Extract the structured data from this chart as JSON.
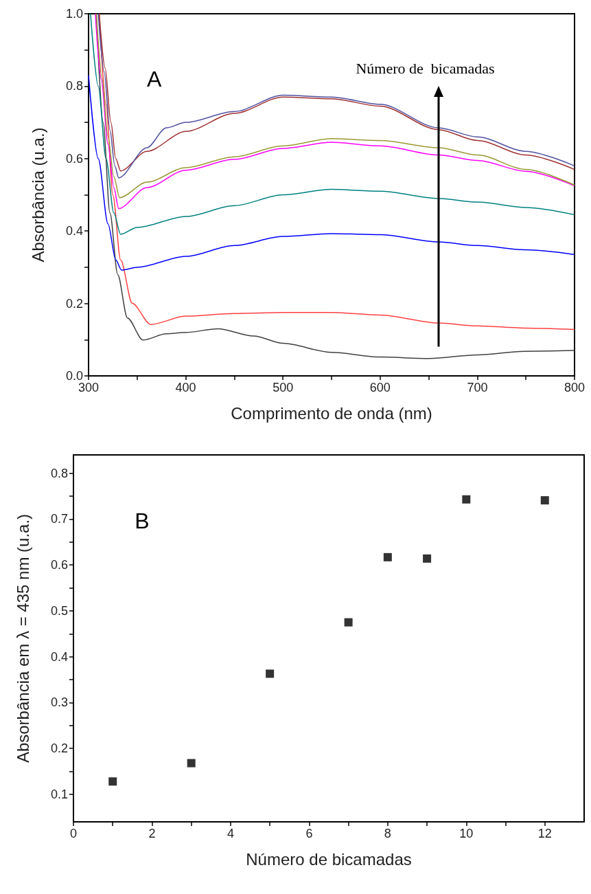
{
  "chart_data": [
    {
      "type": "line",
      "xlabel": "Comprimento de onda (nm)",
      "ylabel": "Absorbância (u.a.)",
      "marker": "none",
      "annotations": [
        "A",
        "Número de  bicamadas"
      ],
      "xlim": [
        300,
        800
      ],
      "xticks": [
        300,
        {
          "value": 350,
          "label": null
        },
        400,
        {
          "value": 450,
          "label": null
        },
        500,
        {
          "value": 550,
          "label": null
        },
        600,
        {
          "value": 650,
          "label": null
        },
        700,
        {
          "value": 750,
          "label": null
        },
        800
      ],
      "ylim": [
        0,
        1
      ],
      "yticks": [
        {
          "value": 0,
          "label": "0.0"
        },
        {
          "value": 0.1,
          "label": null
        },
        0.2,
        {
          "value": 0.3,
          "label": null
        },
        0.4,
        {
          "value": 0.5,
          "label": null
        },
        0.6,
        {
          "value": 0.7,
          "label": null
        },
        0.8,
        {
          "value": 0.9,
          "label": null
        },
        {
          "value": 1,
          "label": "1.0"
        }
      ],
      "series": [
        {
          "color": "#404040",
          "x": [
            308,
            315,
            322,
            330,
            340,
            356,
            380,
            400,
            433,
            470,
            500,
            550,
            600,
            650,
            700,
            750,
            800
          ],
          "values": [
            1.0,
            0.7,
            0.45,
            0.28,
            0.16,
            0.099,
            0.116,
            0.12,
            0.13,
            0.11,
            0.09,
            0.065,
            0.052,
            0.048,
            0.058,
            0.068,
            0.07
          ]
        },
        {
          "color": "#ff4040",
          "x": [
            311,
            318,
            325,
            333,
            345,
            364,
            400,
            450,
            500,
            550,
            600,
            660,
            700,
            750,
            800
          ],
          "values": [
            1.0,
            0.75,
            0.5,
            0.32,
            0.2,
            0.142,
            0.165,
            0.172,
            0.175,
            0.175,
            0.168,
            0.146,
            0.138,
            0.132,
            0.128
          ]
        },
        {
          "color": "#0000ff",
          "x": [
            300,
            310,
            320,
            328,
            334,
            350,
            400,
            450,
            500,
            550,
            600,
            660,
            700,
            750,
            800
          ],
          "values": [
            0.83,
            0.6,
            0.42,
            0.32,
            0.292,
            0.3,
            0.33,
            0.36,
            0.385,
            0.393,
            0.39,
            0.37,
            0.36,
            0.348,
            0.335
          ]
        },
        {
          "color": "#008080",
          "x": [
            302,
            310,
            318,
            326,
            333,
            350,
            400,
            450,
            500,
            550,
            600,
            660,
            700,
            750,
            800
          ],
          "values": [
            1.0,
            0.8,
            0.6,
            0.45,
            0.391,
            0.41,
            0.44,
            0.47,
            0.5,
            0.515,
            0.51,
            0.49,
            0.48,
            0.465,
            0.445
          ]
        },
        {
          "color": "#ff00ff",
          "x": [
            307,
            313,
            320,
            326,
            331,
            360,
            400,
            450,
            500,
            550,
            600,
            660,
            700,
            750,
            800
          ],
          "values": [
            1.0,
            0.82,
            0.64,
            0.52,
            0.462,
            0.52,
            0.568,
            0.598,
            0.628,
            0.645,
            0.635,
            0.61,
            0.595,
            0.565,
            0.525
          ]
        },
        {
          "color": "#999933",
          "x": [
            308,
            314,
            320,
            326,
            332,
            360,
            400,
            450,
            500,
            550,
            600,
            660,
            700,
            750,
            800
          ],
          "values": [
            1.0,
            0.82,
            0.66,
            0.55,
            0.492,
            0.535,
            0.575,
            0.605,
            0.635,
            0.655,
            0.65,
            0.63,
            0.61,
            0.57,
            0.527
          ]
        },
        {
          "color": "#a03030",
          "x": [
            311,
            317,
            323,
            328,
            333,
            360,
            400,
            450,
            500,
            550,
            600,
            660,
            700,
            750,
            800
          ],
          "values": [
            1.0,
            0.85,
            0.7,
            0.6,
            0.566,
            0.62,
            0.675,
            0.725,
            0.77,
            0.765,
            0.745,
            0.68,
            0.65,
            0.61,
            0.57
          ]
        },
        {
          "color": "#5050a0",
          "x": [
            310,
            316,
            322,
            327,
            331,
            360,
            380,
            400,
            450,
            500,
            550,
            600,
            660,
            700,
            750,
            800
          ],
          "values": [
            1.0,
            0.84,
            0.68,
            0.58,
            0.547,
            0.63,
            0.685,
            0.7,
            0.73,
            0.775,
            0.77,
            0.75,
            0.685,
            0.66,
            0.62,
            0.58
          ]
        }
      ]
    },
    {
      "type": "scatter",
      "xlabel": "Número de bicamadas",
      "ylabel": "Absorbância em λ = 435 nm (u.a.)",
      "marker": "square",
      "annotations": [
        "B"
      ],
      "xlim": [
        0,
        13
      ],
      "xticks": [
        0,
        {
          "value": 1,
          "label": null
        },
        2,
        {
          "value": 3,
          "label": null
        },
        4,
        {
          "value": 5,
          "label": null
        },
        6,
        {
          "value": 7,
          "label": null
        },
        8,
        {
          "value": 9,
          "label": null
        },
        10,
        {
          "value": 11,
          "label": null
        },
        12
      ],
      "ylim": [
        0.04,
        0.84
      ],
      "yticks": [
        0.1,
        {
          "value": 0.15,
          "label": null
        },
        0.2,
        {
          "value": 0.25,
          "label": null
        },
        0.3,
        {
          "value": 0.35,
          "label": null
        },
        0.4,
        {
          "value": 0.45,
          "label": null
        },
        0.5,
        {
          "value": 0.55,
          "label": null
        },
        0.6,
        {
          "value": 0.65,
          "label": null
        },
        0.7,
        {
          "value": 0.75,
          "label": null
        },
        0.8
      ],
      "series": [
        {
          "color": "#000000",
          "x": [
            1,
            3,
            5,
            7,
            8,
            9,
            10,
            12
          ],
          "values": [
            0.128,
            0.168,
            0.363,
            0.475,
            0.617,
            0.614,
            0.743,
            0.741
          ]
        }
      ]
    }
  ]
}
